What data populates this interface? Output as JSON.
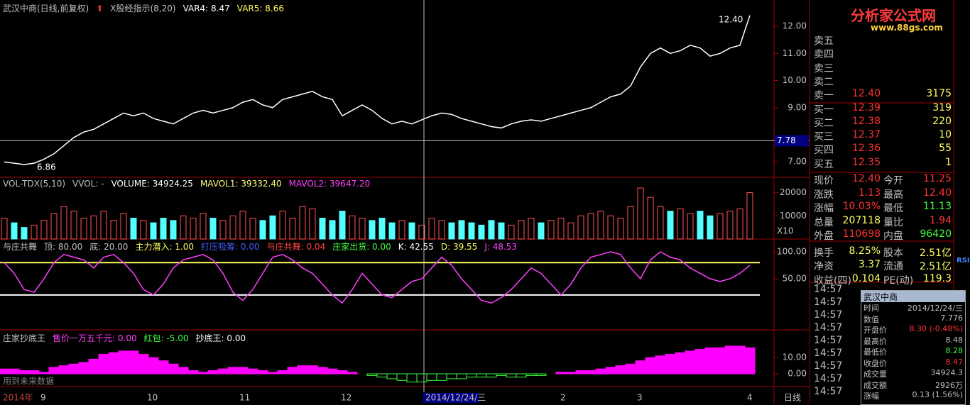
{
  "header": {
    "title": "武汉中商(日线,前复权)",
    "indicator": "X股经指示(8,20)",
    "var4": "VAR4: 8.47",
    "var5": "VAR5: 8.66"
  },
  "price_panel": {
    "ylim": [
      6.43,
      12.97
    ],
    "yticks": [
      {
        "value": 12,
        "label": "12.00"
      },
      {
        "value": 11,
        "label": "11.00"
      },
      {
        "value": 10,
        "label": "10.00"
      },
      {
        "value": 9,
        "label": "9.00"
      },
      {
        "value": 7,
        "label": "7.00"
      }
    ],
    "closes": [
      7.0,
      6.95,
      6.9,
      6.95,
      7.1,
      7.3,
      7.6,
      7.9,
      8.1,
      8.2,
      8.4,
      8.6,
      8.8,
      8.7,
      8.8,
      8.6,
      8.5,
      8.4,
      8.6,
      8.8,
      8.9,
      8.8,
      8.9,
      9.0,
      9.2,
      9.3,
      9.1,
      9.0,
      9.3,
      9.4,
      9.5,
      9.6,
      9.4,
      9.3,
      8.7,
      8.9,
      9.1,
      8.9,
      8.6,
      8.4,
      8.5,
      8.4,
      8.55,
      8.7,
      8.8,
      8.75,
      8.6,
      8.5,
      8.4,
      8.3,
      8.25,
      8.4,
      8.5,
      8.55,
      8.5,
      8.6,
      8.7,
      8.8,
      8.9,
      9.0,
      9.2,
      9.4,
      9.5,
      9.8,
      10.5,
      11.0,
      11.2,
      11.0,
      11.1,
      11.3,
      11.2,
      10.9,
      11.0,
      11.2,
      11.3,
      12.4
    ],
    "high_label": "12.40",
    "low_label": "6.86",
    "cursor_price": {
      "value": 7.78,
      "label": "7.78"
    }
  },
  "volume_panel": {
    "items": [
      {
        "text": "VOL-TDX(5,10)",
        "color": "#c0c0c0"
      },
      {
        "text": "VVOL: -",
        "color": "#c0c0c0"
      },
      {
        "text": "VOLUME: 34924.25",
        "color": "#ffffff"
      },
      {
        "text": "MAVOL1: 39332.40",
        "color": "#ffff80"
      },
      {
        "text": "MAVOL2: 39647.20",
        "color": "#ff40ff"
      }
    ],
    "ylim": [
      0,
      26600
    ],
    "yticks": [
      {
        "value": 20000,
        "label": "20000"
      },
      {
        "value": 10000,
        "label": "10000"
      }
    ],
    "volumes": [
      9000,
      7000,
      5000,
      6000,
      8000,
      11000,
      14000,
      12000,
      9000,
      10000,
      12000,
      8000,
      11000,
      9000,
      8000,
      7000,
      9000,
      8000,
      10000,
      9000,
      11000,
      9000,
      8000,
      10000,
      12000,
      9000,
      8000,
      10000,
      12000,
      9000,
      14000,
      13000,
      9000,
      8000,
      12000,
      10000,
      9000,
      8000,
      9000,
      7000,
      8000,
      7000,
      6000,
      9000,
      8000,
      7000,
      8000,
      7000,
      6000,
      8000,
      7000,
      6000,
      8000,
      9000,
      7000,
      8000,
      9000,
      7000,
      10000,
      11000,
      12000,
      10000,
      9000,
      14000,
      22000,
      18000,
      14000,
      12000,
      13000,
      11000,
      12000,
      10000,
      11000,
      12000,
      13000,
      20000
    ],
    "scale": "X10"
  },
  "kdj_panel": {
    "items": [
      {
        "text": "与庄共舞",
        "color": "#c0c0c0"
      },
      {
        "text": "顶: 80.00",
        "color": "#c0c0c0"
      },
      {
        "text": "底: 20.00",
        "color": "#c0c0c0"
      },
      {
        "text": "主力潜入: 1.00",
        "color": "#ffff60"
      },
      {
        "text": "打压吸筹: 0.00",
        "color": "#4060ff"
      },
      {
        "text": "与庄共舞: 0.04",
        "color": "#ff4040"
      },
      {
        "text": "庄家出货: 0.00",
        "color": "#40ff40"
      },
      {
        "text": "K: 42.55",
        "color": "#ffffff"
      },
      {
        "text": "D: 39.55",
        "color": "#ffff60"
      },
      {
        "text": "J: 48.53",
        "color": "#ff40ff"
      }
    ],
    "top": 80,
    "bottom": 20,
    "ylim": [
      -44.7,
      123.7
    ],
    "yticks": [
      {
        "value": 100,
        "label": "100.00"
      },
      {
        "value": 50,
        "label": "50.00"
      }
    ],
    "j": [
      80,
      60,
      30,
      25,
      50,
      80,
      95,
      90,
      85,
      70,
      90,
      95,
      80,
      60,
      30,
      20,
      40,
      70,
      85,
      90,
      95,
      85,
      60,
      25,
      10,
      30,
      60,
      90,
      95,
      85,
      70,
      60,
      40,
      20,
      5,
      30,
      60,
      40,
      20,
      15,
      30,
      45,
      50,
      70,
      90,
      75,
      50,
      30,
      10,
      5,
      15,
      30,
      50,
      70,
      60,
      40,
      20,
      40,
      70,
      90,
      95,
      100,
      95,
      70,
      50,
      85,
      100,
      90,
      85,
      70,
      60,
      50,
      45,
      50,
      60,
      75
    ]
  },
  "bottom_panel": {
    "items": [
      {
        "text": "庄家抄底王",
        "color": "#c0c0c0"
      },
      {
        "text": "售价一万五千元: 0.00",
        "color": "#ff40ff"
      },
      {
        "text": "红包: -5.00",
        "color": "#40ff40"
      },
      {
        "text": "抄底王: 0.00",
        "color": "#ffffff"
      }
    ],
    "ylim": [
      -7.8,
      27
    ],
    "yticks": [
      {
        "value": 10,
        "label": "10.00"
      },
      {
        "value": 0,
        "label": "0.00"
      }
    ],
    "values": [
      3,
      3,
      2,
      2,
      1,
      4,
      5,
      6,
      7,
      9,
      12,
      13,
      14,
      14,
      12,
      10,
      8,
      6,
      4,
      2,
      1,
      2,
      3,
      4,
      4,
      3,
      2,
      1,
      2,
      4,
      5,
      5,
      4,
      3,
      2,
      1,
      0,
      -1,
      -2,
      -3,
      -4,
      -5,
      -5,
      -4,
      -4,
      -3,
      -3,
      -2,
      -2,
      -2,
      -1,
      -2,
      -2,
      -1,
      -1,
      0,
      1,
      1,
      2,
      2,
      3,
      4,
      5,
      6,
      8,
      10,
      11,
      12,
      13,
      14,
      15,
      16,
      16,
      17,
      17,
      16
    ],
    "note": "用到未来数据"
  },
  "date_axis": {
    "labels": [
      "2014年",
      "9",
      "10",
      "11",
      "12",
      "2014/12/24/三",
      "2",
      "3",
      "4"
    ],
    "period": "日线"
  },
  "logo": {
    "name": "分析家公式网",
    "url": "www.88gs.com"
  },
  "toolbar": {
    "rsi": "RSI"
  },
  "order_book": [
    [
      "卖五",
      "",
      ""
    ],
    [
      "卖四",
      "",
      ""
    ],
    [
      "卖三",
      "",
      ""
    ],
    [
      "卖二",
      "",
      ""
    ],
    [
      "卖一",
      "12.40",
      "3175"
    ],
    [
      "买一",
      "12.39",
      "319"
    ],
    [
      "买二",
      "12.38",
      "220"
    ],
    [
      "买三",
      "12.37",
      "10"
    ],
    [
      "买四",
      "12.36",
      "55"
    ],
    [
      "买五",
      "12.35",
      "1"
    ]
  ],
  "stats": [
    [
      "现价",
      "12.40",
      "今开",
      "11.25"
    ],
    [
      "涨跌",
      "1.13",
      "最高",
      "12.40"
    ],
    [
      "涨幅",
      "10.03%",
      "最低",
      "11.13"
    ],
    [
      "总量",
      "207118",
      "量比",
      "1.94"
    ],
    [
      "外盘",
      "110698",
      "内盘",
      "96420"
    ],
    [
      "换手",
      "8.25%",
      "股本",
      "2.51亿"
    ],
    [
      "净资",
      "3.37",
      "流通",
      "2.51亿"
    ],
    [
      "收益(四)",
      "0.104",
      "PE(动)",
      "119.3"
    ]
  ],
  "ticks": [
    "14:57",
    "14:57",
    "14:57",
    "14:57",
    "14:57",
    "14:57",
    "14:57",
    "14:57",
    "14:57"
  ],
  "popup": {
    "title": "武汉中商",
    "rows": [
      [
        "时间",
        "2014/12/24/三"
      ],
      [
        "数值",
        "7.776"
      ],
      [
        "开盘价",
        "8.30 (-0.48%)"
      ],
      [
        "最高价",
        "8.48"
      ],
      [
        "最低价",
        "8.28"
      ],
      [
        "收盘价",
        "8.47"
      ],
      [
        "成交量",
        "34924.3"
      ],
      [
        "成交额",
        "2926万"
      ],
      [
        "涨幅",
        "0.13 (1.56%)"
      ]
    ]
  }
}
